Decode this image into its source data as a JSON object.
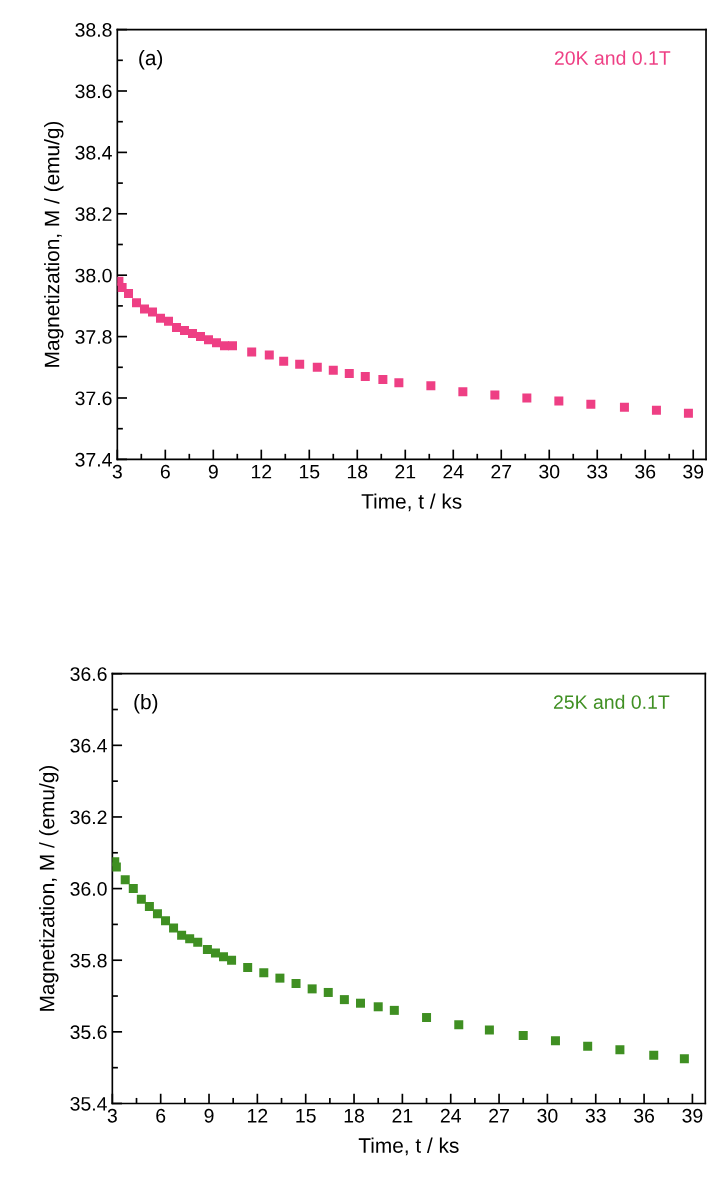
{
  "chart_data": [
    {
      "type": "scatter",
      "xlabel": "Time, t / ks",
      "ylabel": "Magnetization, M / (emu/g)",
      "marker": "square",
      "grid": false,
      "legend": false,
      "annotations": [
        "(a)"
      ],
      "xlim": [
        3,
        39.8
      ],
      "ylim": [
        37.4,
        38.8
      ],
      "xticks": [
        3,
        {
          "value": 4.5,
          "label": null
        },
        6,
        {
          "value": 7.5,
          "label": null
        },
        9,
        {
          "value": 10.5,
          "label": null
        },
        12,
        {
          "value": 13.5,
          "label": null
        },
        15,
        {
          "value": 16.5,
          "label": null
        },
        18,
        {
          "value": 19.5,
          "label": null
        },
        21,
        {
          "value": 22.5,
          "label": null
        },
        24,
        {
          "value": 25.5,
          "label": null
        },
        27,
        {
          "value": 28.5,
          "label": null
        },
        30,
        {
          "value": 31.5,
          "label": null
        },
        33,
        {
          "value": 34.5,
          "label": null
        },
        36,
        {
          "value": 37.5,
          "label": null
        },
        39
      ],
      "yticks": [
        {
          "value": 37.4,
          "label": "37.4"
        },
        {
          "value": 37.5,
          "label": null
        },
        {
          "value": 37.6,
          "label": "37.6"
        },
        {
          "value": 37.7,
          "label": null
        },
        {
          "value": 37.8,
          "label": "37.8"
        },
        {
          "value": 37.9,
          "label": null
        },
        {
          "value": 38.0,
          "label": "38.0"
        },
        {
          "value": 38.1,
          "label": null
        },
        {
          "value": 38.2,
          "label": "38.2"
        },
        {
          "value": 38.3,
          "label": null
        },
        {
          "value": 38.4,
          "label": "38.4"
        },
        {
          "value": 38.5,
          "label": null
        },
        {
          "value": 38.6,
          "label": "38.6"
        },
        {
          "value": 38.7,
          "label": null
        },
        {
          "value": 38.8,
          "label": "38.8"
        }
      ],
      "series": [
        {
          "name": "20K and 0.1T",
          "color": "#ee3f84",
          "x": [
            3.1,
            3.3,
            3.7,
            4.2,
            4.7,
            5.2,
            5.7,
            6.2,
            6.7,
            7.2,
            7.7,
            8.2,
            8.7,
            9.2,
            9.7,
            10.2,
            11.4,
            12.5,
            13.4,
            14.4,
            15.5,
            16.5,
            17.5,
            18.5,
            19.6,
            20.6,
            22.6,
            24.6,
            26.6,
            28.6,
            30.6,
            32.6,
            34.7,
            36.7,
            38.7
          ],
          "values": [
            37.98,
            37.96,
            37.94,
            37.91,
            37.89,
            37.88,
            37.86,
            37.85,
            37.83,
            37.82,
            37.81,
            37.8,
            37.79,
            37.78,
            37.77,
            37.77,
            37.75,
            37.74,
            37.72,
            37.71,
            37.7,
            37.69,
            37.68,
            37.67,
            37.66,
            37.65,
            37.64,
            37.62,
            37.61,
            37.6,
            37.59,
            37.58,
            37.57,
            37.56,
            37.55
          ]
        }
      ]
    },
    {
      "type": "scatter",
      "xlabel": "Time, t / ks",
      "ylabel": "Magnetization, M / (emu/g)",
      "marker": "square",
      "grid": false,
      "legend": false,
      "annotations": [
        "(b)"
      ],
      "xlim": [
        3,
        39.8
      ],
      "ylim": [
        35.4,
        36.6
      ],
      "xticks": [
        3,
        {
          "value": 4.5,
          "label": null
        },
        6,
        {
          "value": 7.5,
          "label": null
        },
        9,
        {
          "value": 10.5,
          "label": null
        },
        12,
        {
          "value": 13.5,
          "label": null
        },
        15,
        {
          "value": 16.5,
          "label": null
        },
        18,
        {
          "value": 19.5,
          "label": null
        },
        21,
        {
          "value": 22.5,
          "label": null
        },
        24,
        {
          "value": 25.5,
          "label": null
        },
        27,
        {
          "value": 28.5,
          "label": null
        },
        30,
        {
          "value": 31.5,
          "label": null
        },
        33,
        {
          "value": 34.5,
          "label": null
        },
        36,
        {
          "value": 37.5,
          "label": null
        },
        39
      ],
      "yticks": [
        {
          "value": 35.4,
          "label": "35.4"
        },
        {
          "value": 35.5,
          "label": null
        },
        {
          "value": 35.6,
          "label": "35.6"
        },
        {
          "value": 35.7,
          "label": null
        },
        {
          "value": 35.8,
          "label": "35.8"
        },
        {
          "value": 35.9,
          "label": null
        },
        {
          "value": 36.0,
          "label": "36.0"
        },
        {
          "value": 36.1,
          "label": null
        },
        {
          "value": 36.2,
          "label": "36.2"
        },
        {
          "value": 36.3,
          "label": null
        },
        {
          "value": 36.4,
          "label": "36.4"
        },
        {
          "value": 36.5,
          "label": null
        },
        {
          "value": 36.6,
          "label": "36.6"
        }
      ],
      "series": [
        {
          "name": "25K and 0.1T",
          "color": "#3f8f22",
          "x": [
            3.15,
            3.25,
            3.8,
            4.3,
            4.8,
            5.3,
            5.8,
            6.3,
            6.8,
            7.3,
            7.8,
            8.3,
            8.9,
            9.4,
            9.9,
            10.4,
            11.4,
            12.4,
            13.4,
            14.4,
            15.4,
            16.4,
            17.4,
            18.4,
            19.5,
            20.5,
            22.5,
            24.5,
            26.4,
            28.5,
            30.5,
            32.5,
            34.5,
            36.6,
            38.5
          ],
          "values": [
            36.075,
            36.06,
            36.025,
            36.0,
            35.97,
            35.95,
            35.93,
            35.91,
            35.89,
            35.87,
            35.86,
            35.85,
            35.83,
            35.82,
            35.81,
            35.8,
            35.78,
            35.765,
            35.75,
            35.735,
            35.72,
            35.71,
            35.69,
            35.68,
            35.67,
            35.66,
            35.64,
            35.62,
            35.605,
            35.59,
            35.575,
            35.56,
            35.55,
            35.535,
            35.525
          ]
        }
      ]
    }
  ]
}
